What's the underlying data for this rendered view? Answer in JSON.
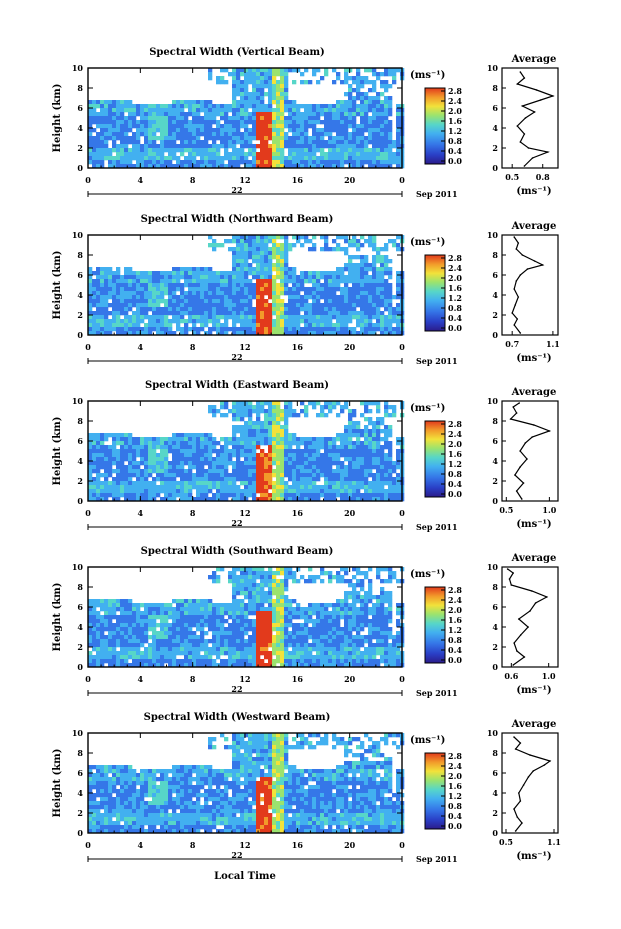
{
  "figure": {
    "bottom_xlabel": "Local Time",
    "x_ticks": [
      "0",
      "4",
      "8",
      "12",
      "16",
      "20",
      "0"
    ],
    "y_ticks": [
      "0",
      "2",
      "4",
      "6",
      "8",
      "10"
    ],
    "colorbar_ticks": [
      "0.0",
      "0.4",
      "0.8",
      "1.2",
      "1.6",
      "2.0",
      "2.4",
      "2.8"
    ],
    "colorbar_unit": "(ms⁻¹)",
    "profile_title": "Average",
    "profile_unit": "(ms⁻¹)",
    "ylabel": "Height (km)",
    "date_label": "Sep 2011"
  },
  "colors": {
    "colormap": [
      "#2b1b8a",
      "#2a3fc6",
      "#3577e8",
      "#42b0f0",
      "#57d6c8",
      "#9be36e",
      "#f2e23a",
      "#f29a2a",
      "#e23a1c"
    ]
  },
  "chart_data": [
    {
      "type": "heatmap",
      "title": "Spectral Width (Vertical Beam)",
      "day_label": "22",
      "xlim": [
        0,
        24
      ],
      "ylim": [
        0,
        10
      ],
      "profile": {
        "tick_labels": [
          "0.5",
          "0.8"
        ],
        "tick_values": [
          0.5,
          0.8
        ],
        "xlim": [
          0.4,
          0.95
        ],
        "heights_km": [
          0.2,
          1.0,
          1.6,
          2.0,
          2.6,
          3.4,
          4.2,
          5.0,
          5.6,
          6.2,
          6.8,
          7.2,
          7.8,
          8.4,
          9.0,
          9.6
        ],
        "values": [
          0.62,
          0.7,
          0.85,
          0.66,
          0.58,
          0.62,
          0.55,
          0.63,
          0.72,
          0.6,
          0.78,
          0.9,
          0.74,
          0.55,
          0.62,
          0.58
        ]
      }
    },
    {
      "type": "heatmap",
      "title": "Spectral Width (Northward Beam)",
      "day_label": "22",
      "xlim": [
        0,
        24
      ],
      "ylim": [
        0,
        10
      ],
      "profile": {
        "tick_labels": [
          "0.7",
          "1.1"
        ],
        "tick_values": [
          0.7,
          1.1
        ],
        "xlim": [
          0.6,
          1.15
        ],
        "heights_km": [
          0.2,
          1.0,
          1.6,
          2.2,
          3.0,
          3.8,
          4.6,
          5.4,
          6.0,
          6.6,
          7.0,
          7.4,
          8.0,
          8.6,
          9.2,
          9.8
        ],
        "values": [
          0.78,
          0.72,
          0.75,
          0.7,
          0.73,
          0.76,
          0.72,
          0.74,
          0.78,
          0.85,
          1.0,
          0.92,
          0.8,
          0.74,
          0.76,
          0.72
        ]
      }
    },
    {
      "type": "heatmap",
      "title": "Spectral Width (Eastward Beam)",
      "day_label": "22",
      "xlim": [
        0,
        24
      ],
      "ylim": [
        0,
        10
      ],
      "profile": {
        "tick_labels": [
          "0.5",
          "1.0"
        ],
        "tick_values": [
          0.5,
          1.0
        ],
        "xlim": [
          0.45,
          1.1
        ],
        "heights_km": [
          0.2,
          1.0,
          1.8,
          2.6,
          3.4,
          4.2,
          5.0,
          5.8,
          6.4,
          7.0,
          7.6,
          8.2,
          8.8,
          9.4,
          9.8
        ],
        "values": [
          0.68,
          0.62,
          0.7,
          0.6,
          0.66,
          0.74,
          0.66,
          0.72,
          0.8,
          1.0,
          0.82,
          0.55,
          0.62,
          0.58,
          0.65
        ]
      }
    },
    {
      "type": "heatmap",
      "title": "Spectral Width (Southward Beam)",
      "day_label": "22",
      "xlim": [
        0,
        24
      ],
      "ylim": [
        0,
        10
      ],
      "profile": {
        "tick_labels": [
          "0.6",
          "1.0"
        ],
        "tick_values": [
          0.6,
          1.0
        ],
        "xlim": [
          0.5,
          1.1
        ],
        "heights_km": [
          0.2,
          1.0,
          1.6,
          2.4,
          3.2,
          4.0,
          4.8,
          5.6,
          6.4,
          7.0,
          7.6,
          8.2,
          8.8,
          9.4,
          9.8
        ],
        "values": [
          0.62,
          0.74,
          0.66,
          0.63,
          0.7,
          0.78,
          0.68,
          0.8,
          0.86,
          0.98,
          0.82,
          0.6,
          0.58,
          0.62,
          0.56
        ]
      }
    },
    {
      "type": "heatmap",
      "title": "Spectral Width (Westward Beam)",
      "day_label": "22",
      "xlim": [
        0,
        24
      ],
      "ylim": [
        0,
        10
      ],
      "profile": {
        "tick_labels": [
          "0.5",
          "1.1"
        ],
        "tick_values": [
          0.5,
          1.1
        ],
        "xlim": [
          0.45,
          1.15
        ],
        "heights_km": [
          0.2,
          1.0,
          1.6,
          2.4,
          3.2,
          4.0,
          4.8,
          5.6,
          6.2,
          6.8,
          7.2,
          7.8,
          8.4,
          9.0,
          9.6
        ],
        "values": [
          0.62,
          0.7,
          0.64,
          0.6,
          0.68,
          0.66,
          0.72,
          0.78,
          0.84,
          0.98,
          1.05,
          0.8,
          0.62,
          0.68,
          0.6
        ]
      }
    }
  ]
}
